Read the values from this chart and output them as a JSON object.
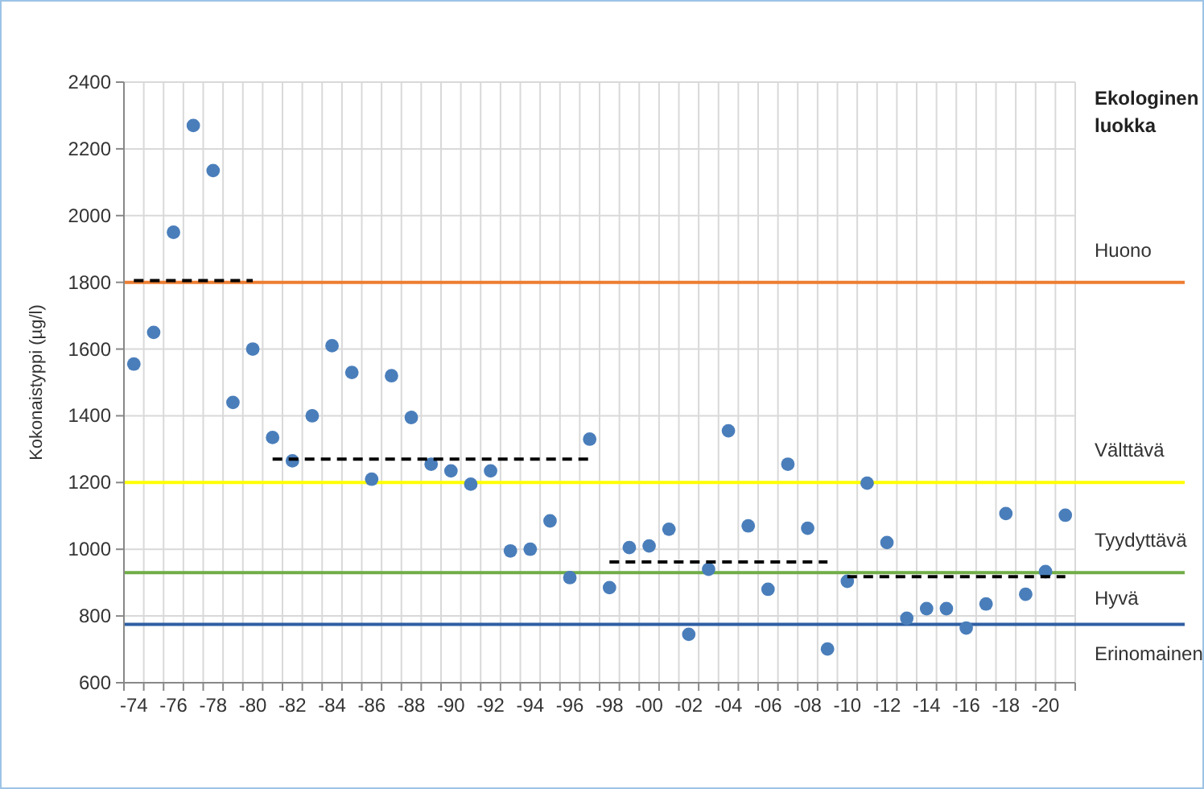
{
  "chart_data": {
    "type": "scatter",
    "ylabel": "Kokonaistyppi (µg/l)",
    "categories": [
      "-74",
      null,
      "-76",
      null,
      "-78",
      null,
      "-80",
      null,
      "-82",
      null,
      "-84",
      null,
      "-86",
      null,
      "-88",
      null,
      "-90",
      null,
      "-92",
      null,
      "-94",
      null,
      "-96",
      null,
      "-98",
      null,
      "-00",
      null,
      "-02",
      null,
      "-04",
      null,
      "-06",
      null,
      "-08",
      null,
      "-10",
      null,
      "-12",
      null,
      "-14",
      null,
      "-16",
      null,
      "-18",
      null,
      "-20",
      null
    ],
    "ylim": [
      600,
      2400
    ],
    "yticks": [
      600,
      800,
      1000,
      1200,
      1400,
      1600,
      1800,
      2000,
      2200,
      2400
    ],
    "grid": true,
    "marker": "circle",
    "series": [
      {
        "color": "#4a7ebb",
        "values": [
          1555,
          1650,
          1950,
          2270,
          2135,
          1440,
          1600,
          1335,
          1265,
          1400,
          1610,
          1530,
          1210,
          1520,
          1395,
          1255,
          1235,
          1195,
          1235,
          995,
          1000,
          1085,
          915,
          1330,
          885,
          1005,
          1010,
          1060,
          745,
          940,
          1355,
          1070,
          880,
          1255,
          1063,
          701,
          904,
          1198,
          1020,
          793,
          822,
          822,
          764,
          836,
          1107,
          865,
          933,
          1102
        ]
      },
      {
        "type": "line",
        "color": "#000000",
        "line_style": "dashed",
        "marker": "none",
        "values": [
          1805,
          1805,
          1805,
          1805,
          1805,
          1805,
          1805,
          null,
          null,
          null,
          null,
          null,
          null,
          null,
          null,
          null,
          null,
          null,
          null,
          null,
          null,
          null,
          null,
          null,
          null,
          null,
          null,
          null,
          null,
          null,
          null,
          null,
          null,
          null,
          null,
          null,
          null,
          null,
          null,
          null,
          null,
          null,
          null,
          null,
          null,
          null,
          null,
          null
        ]
      },
      {
        "type": "line",
        "color": "#000000",
        "line_style": "dashed",
        "marker": "none",
        "values": [
          null,
          null,
          null,
          null,
          null,
          null,
          null,
          1270,
          1270,
          1270,
          1270,
          1270,
          1270,
          1270,
          1270,
          1270,
          1270,
          1270,
          1270,
          1270,
          1270,
          1270,
          1270,
          1270,
          null,
          null,
          null,
          null,
          null,
          null,
          null,
          null,
          null,
          null,
          null,
          null,
          null,
          null,
          null,
          null,
          null,
          null,
          null,
          null,
          null,
          null,
          null,
          null
        ]
      },
      {
        "type": "line",
        "color": "#000000",
        "line_style": "dashed",
        "marker": "none",
        "values": [
          null,
          null,
          null,
          null,
          null,
          null,
          null,
          null,
          null,
          null,
          null,
          null,
          null,
          null,
          null,
          null,
          null,
          null,
          null,
          null,
          null,
          null,
          null,
          null,
          962,
          962,
          962,
          962,
          962,
          962,
          962,
          962,
          962,
          962,
          962,
          962,
          null,
          null,
          null,
          null,
          null,
          null,
          null,
          null,
          null,
          null,
          null,
          null
        ]
      },
      {
        "type": "line",
        "color": "#000000",
        "line_style": "dashed",
        "marker": "none",
        "values": [
          null,
          null,
          null,
          null,
          null,
          null,
          null,
          null,
          null,
          null,
          null,
          null,
          null,
          null,
          null,
          null,
          null,
          null,
          null,
          null,
          null,
          null,
          null,
          null,
          null,
          null,
          null,
          null,
          null,
          null,
          null,
          null,
          null,
          null,
          null,
          null,
          918,
          918,
          918,
          918,
          918,
          918,
          918,
          918,
          918,
          918,
          918,
          918
        ]
      }
    ],
    "ref_lines": [
      {
        "axis": "y",
        "value": 1800,
        "color": "#ed7d31"
      },
      {
        "axis": "y",
        "value": 1200,
        "color": "#ffff00"
      },
      {
        "axis": "y",
        "value": 930,
        "color": "#70ad47"
      },
      {
        "axis": "y",
        "value": 775,
        "color": "#2e5fa3"
      }
    ],
    "annotations": [
      "Ekologinen luokka",
      "Huono",
      "Välttävä",
      "Tyydyttävä",
      "Hyvä",
      "Erinomainen"
    ]
  }
}
